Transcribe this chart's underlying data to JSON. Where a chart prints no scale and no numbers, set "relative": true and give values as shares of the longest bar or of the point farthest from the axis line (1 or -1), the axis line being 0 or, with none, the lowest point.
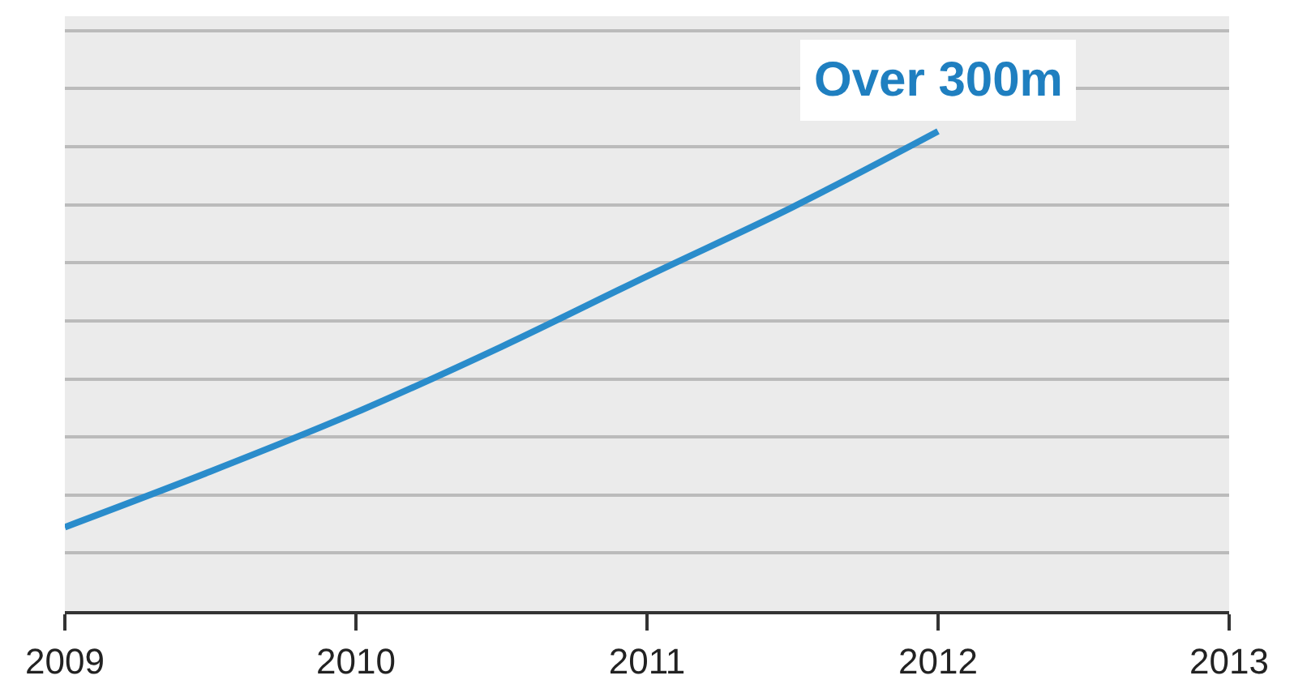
{
  "chart_data": {
    "type": "line",
    "relative": true,
    "x": [
      2009,
      2009.5,
      2010,
      2010.5,
      2011,
      2011.5,
      2012
    ],
    "xlim": [
      2009,
      2013
    ],
    "xticks": [
      2009,
      2010,
      2011,
      2012,
      2013
    ],
    "series": [
      {
        "color": "#2a8ccb",
        "values": [
          0.175,
          0.291,
          0.414,
          0.551,
          0.698,
          0.842,
          1
        ]
      }
    ],
    "annotations": [
      {
        "text": "Over 300m",
        "x": 2012,
        "y": 1
      }
    ],
    "grid": "y",
    "tick_labels": "x",
    "marker": "none",
    "line_style": "solid"
  }
}
